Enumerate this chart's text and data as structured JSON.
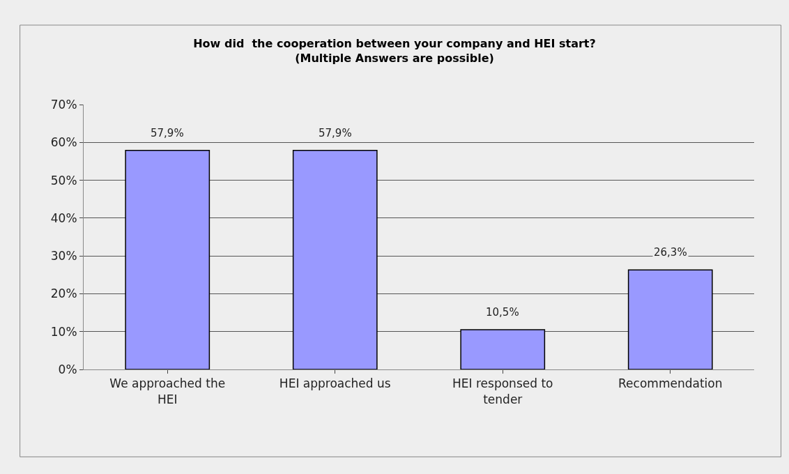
{
  "chart_data": {
    "type": "bar",
    "title": "How did  the cooperation between your company and HEI start?\n(Multiple Answers are possible)",
    "categories": [
      "We approached the HEI",
      "HEI approached us",
      "HEI responsed to tender",
      "Recommendation"
    ],
    "values": [
      57.9,
      57.9,
      10.5,
      26.3
    ],
    "value_labels": [
      "57,9%",
      "57,9%",
      "10,5%",
      "26,3%"
    ],
    "color": "#9999ff",
    "ylim": [
      0,
      70
    ],
    "yticks": [
      {
        "value": 0,
        "label": "0%"
      },
      {
        "value": 10,
        "label": "10%"
      },
      {
        "value": 20,
        "label": "20%"
      },
      {
        "value": 30,
        "label": "30%"
      },
      {
        "value": 40,
        "label": "40%"
      },
      {
        "value": 50,
        "label": "50%"
      },
      {
        "value": 60,
        "label": "60%"
      },
      {
        "value": 70,
        "label": "70%"
      }
    ],
    "grid": "y",
    "legend": false
  }
}
